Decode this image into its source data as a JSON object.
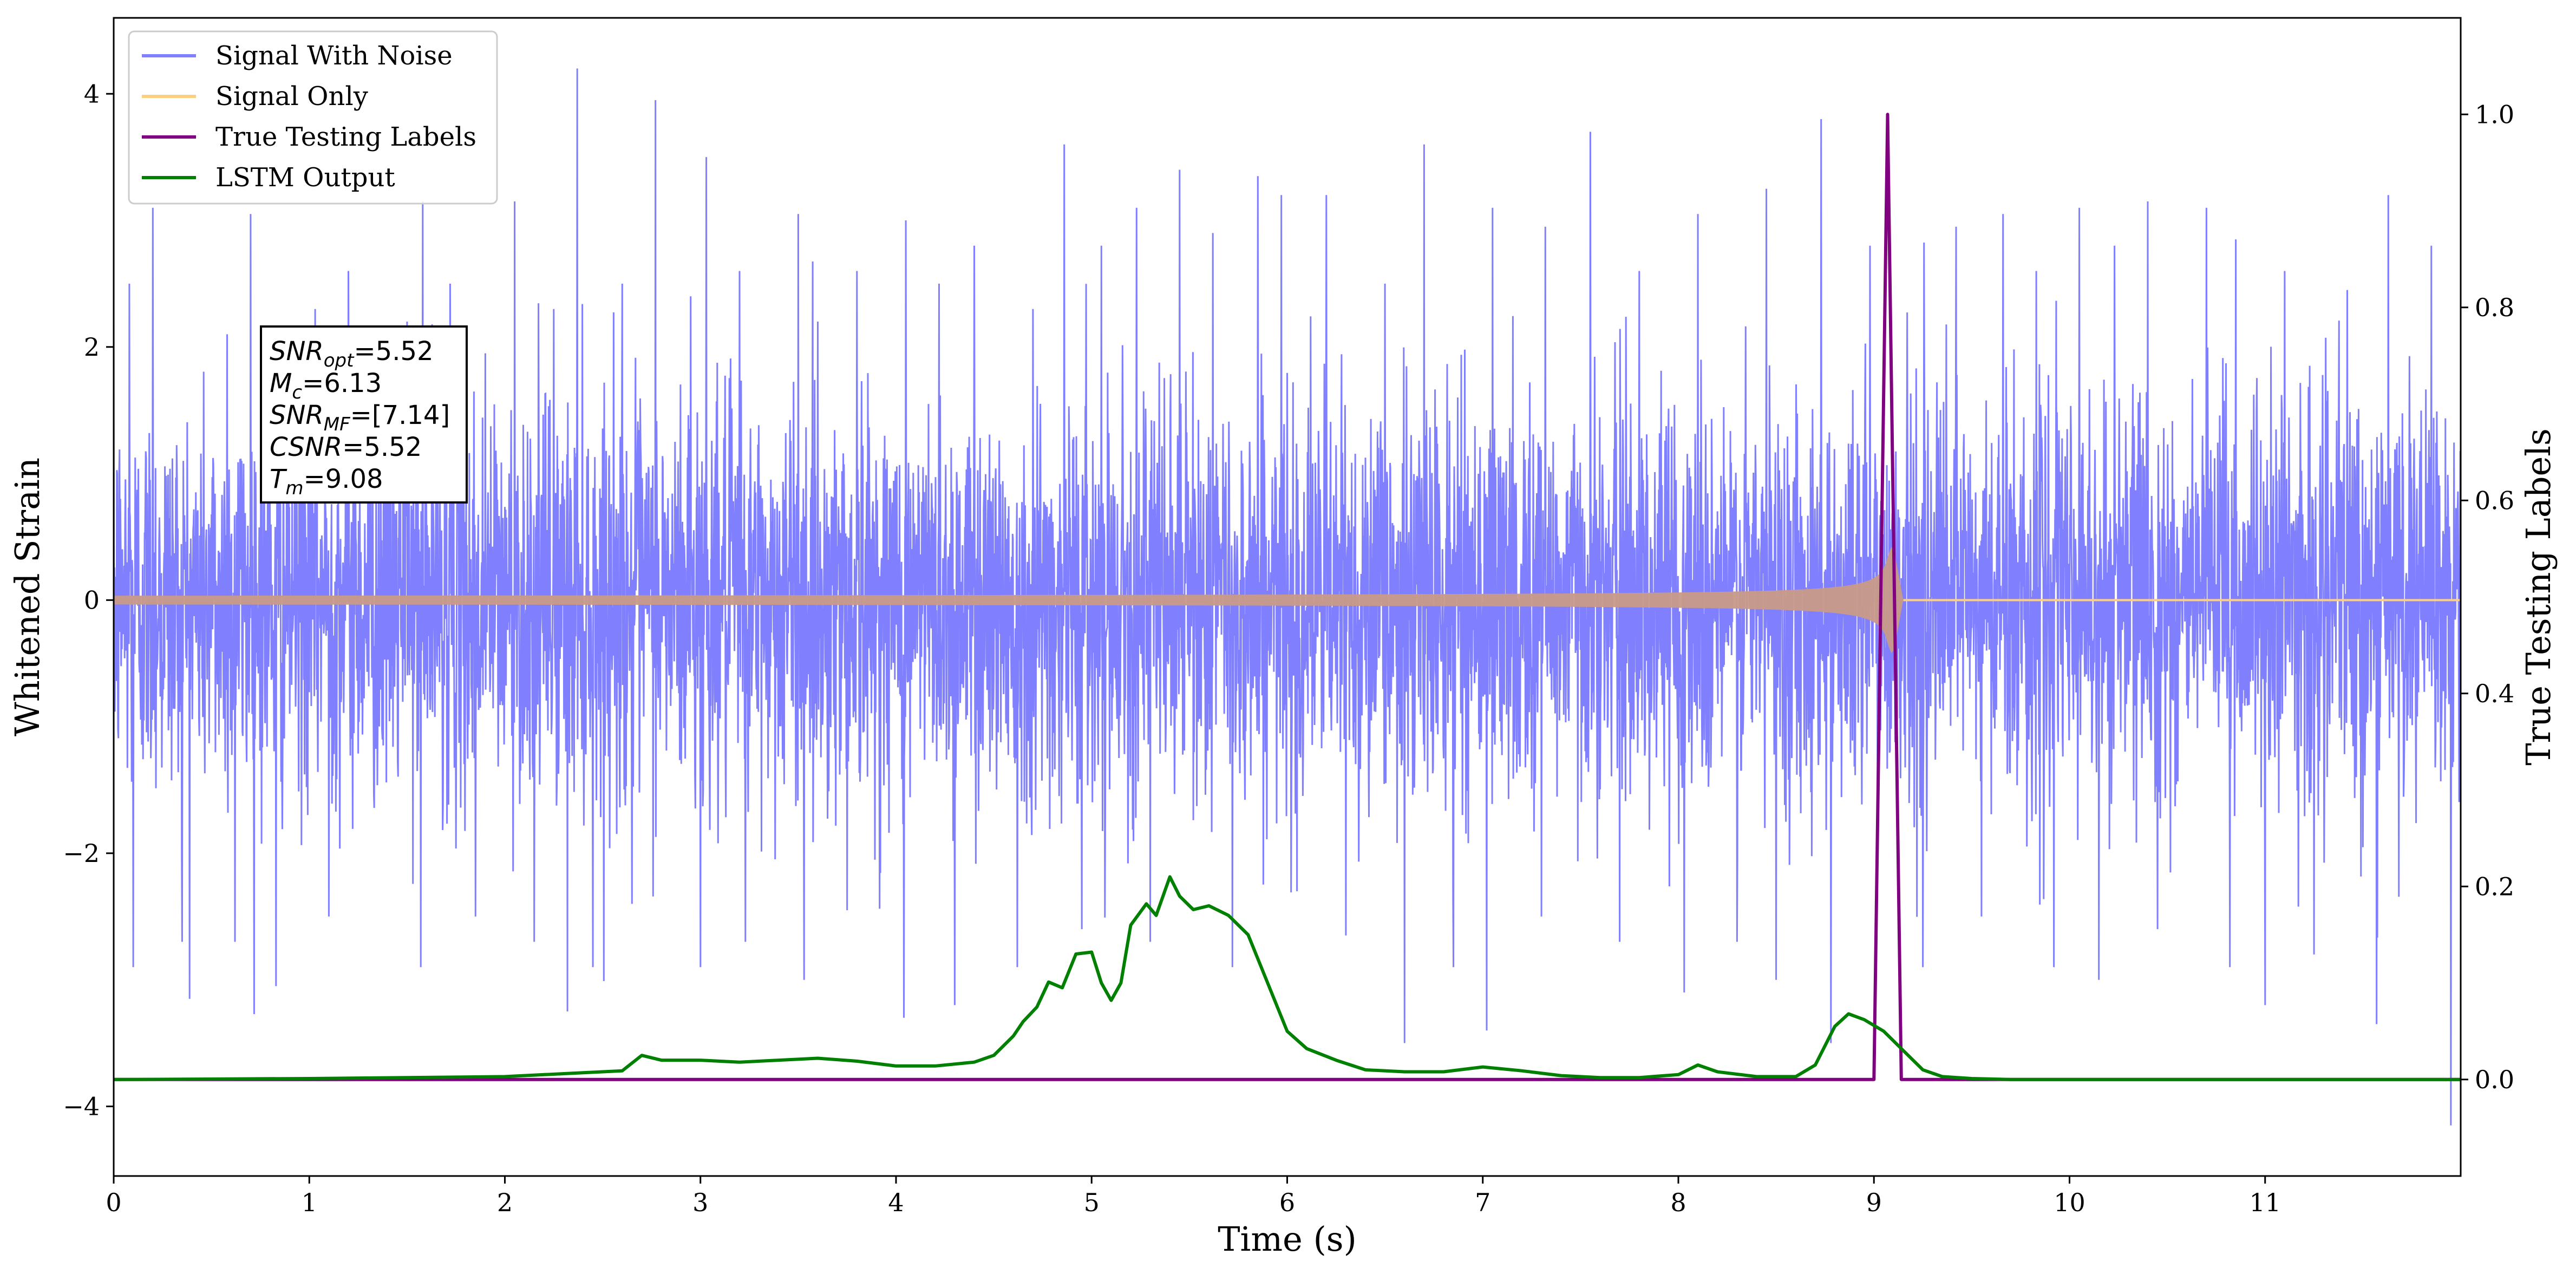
{
  "chart_data": {
    "type": "line",
    "xlabel": "Time (s)",
    "ylabel": "Whitened Strain",
    "y2label": "True Testing Labels",
    "xlim": [
      0,
      12.0
    ],
    "ylim": [
      -4.55,
      4.6
    ],
    "y2lim": [
      -0.1,
      1.1
    ],
    "xticks": [
      0,
      1,
      2,
      3,
      4,
      5,
      6,
      7,
      8,
      9,
      10,
      11
    ],
    "yticks": [
      -4,
      -2,
      0,
      2,
      4
    ],
    "yticklabels": [
      "−4",
      "−2",
      "0",
      "2",
      "4"
    ],
    "y2ticks": [
      0.0,
      0.2,
      0.4,
      0.6,
      0.8,
      1.0
    ],
    "y2ticklabels": [
      "0.0",
      "0.2",
      "0.4",
      "0.6",
      "0.8",
      "1.0"
    ],
    "grid": false,
    "legend_position": "top-left",
    "series": [
      {
        "name": "Signal With Noise",
        "axis": "left",
        "color": "#8080ff",
        "noise_std": 0.78,
        "spikes": [
          [
            0.08,
            2.5
          ],
          [
            0.2,
            3.1
          ],
          [
            0.35,
            2.6
          ],
          [
            0.58,
            2.1
          ],
          [
            0.7,
            3.05
          ],
          [
            0.84,
            1.85
          ],
          [
            1.03,
            2.3
          ],
          [
            1.2,
            2.6
          ],
          [
            1.38,
            2.0
          ],
          [
            1.5,
            2.2
          ],
          [
            1.58,
            3.15
          ],
          [
            1.72,
            2.5
          ],
          [
            1.9,
            1.95
          ],
          [
            2.05,
            3.15
          ],
          [
            2.25,
            2.3
          ],
          [
            2.37,
            4.2
          ],
          [
            2.6,
            2.5
          ],
          [
            2.77,
            3.95
          ],
          [
            2.95,
            2.4
          ],
          [
            3.03,
            3.5
          ],
          [
            3.2,
            2.6
          ],
          [
            3.5,
            3.05
          ],
          [
            3.6,
            2.2
          ],
          [
            3.8,
            2.6
          ],
          [
            4.05,
            3.0
          ],
          [
            4.22,
            2.5
          ],
          [
            4.4,
            2.8
          ],
          [
            4.7,
            2.3
          ],
          [
            4.86,
            3.6
          ],
          [
            5.05,
            2.8
          ],
          [
            5.23,
            3.1
          ],
          [
            5.45,
            3.4
          ],
          [
            5.62,
            2.9
          ],
          [
            5.85,
            3.35
          ],
          [
            5.97,
            3.2
          ],
          [
            6.2,
            3.2
          ],
          [
            6.5,
            2.5
          ],
          [
            6.7,
            3.6
          ],
          [
            6.85,
            2.8
          ],
          [
            7.05,
            3.1
          ],
          [
            7.32,
            2.95
          ],
          [
            7.55,
            3.7
          ],
          [
            7.8,
            2.6
          ],
          [
            8.1,
            3.05
          ],
          [
            8.3,
            2.5
          ],
          [
            8.45,
            3.25
          ],
          [
            8.73,
            3.8
          ],
          [
            8.98,
            2.8
          ],
          [
            9.42,
            2.95
          ],
          [
            9.66,
            3.05
          ],
          [
            9.83,
            2.6
          ],
          [
            10.05,
            3.1
          ],
          [
            10.23,
            2.8
          ],
          [
            10.4,
            3.15
          ],
          [
            10.7,
            3.1
          ],
          [
            10.85,
            2.85
          ],
          [
            11.1,
            2.6
          ],
          [
            11.42,
            2.45
          ],
          [
            11.63,
            3.2
          ],
          [
            11.85,
            2.8
          ],
          [
            0.1,
            -2.9
          ],
          [
            0.35,
            -2.7
          ],
          [
            0.62,
            -2.7
          ],
          [
            0.83,
            -3.05
          ],
          [
            1.1,
            -2.5
          ],
          [
            1.57,
            -2.9
          ],
          [
            1.85,
            -2.5
          ],
          [
            2.15,
            -2.7
          ],
          [
            2.32,
            -3.25
          ],
          [
            2.45,
            -2.9
          ],
          [
            2.65,
            -2.4
          ],
          [
            3.0,
            -2.9
          ],
          [
            3.23,
            -2.7
          ],
          [
            3.53,
            -3.0
          ],
          [
            3.75,
            -2.45
          ],
          [
            4.04,
            -3.3
          ],
          [
            4.3,
            -3.2
          ],
          [
            4.62,
            -2.9
          ],
          [
            4.95,
            -2.6
          ],
          [
            5.3,
            -2.7
          ],
          [
            5.72,
            -2.9
          ],
          [
            6.05,
            -2.3
          ],
          [
            6.3,
            -2.65
          ],
          [
            6.6,
            -3.5
          ],
          [
            6.85,
            -2.9
          ],
          [
            7.02,
            -3.4
          ],
          [
            7.3,
            -2.5
          ],
          [
            7.7,
            -2.7
          ],
          [
            8.03,
            -3.1
          ],
          [
            8.3,
            -2.7
          ],
          [
            8.5,
            -3.0
          ],
          [
            8.78,
            -3.5
          ],
          [
            9.25,
            -2.9
          ],
          [
            9.55,
            -2.5
          ],
          [
            9.92,
            -2.9
          ],
          [
            10.15,
            -3.0
          ],
          [
            10.45,
            -2.6
          ],
          [
            10.82,
            -2.9
          ],
          [
            11.0,
            -3.2
          ],
          [
            11.25,
            -2.8
          ],
          [
            11.57,
            -3.35
          ],
          [
            11.95,
            -4.15
          ]
        ]
      },
      {
        "name": "Signal Only",
        "axis": "left",
        "color": "#ffcf80",
        "waveform": {
          "merger_time": 9.1,
          "start_amplitude": 0.025,
          "peak_amplitude": 0.42,
          "end_time": 9.15
        }
      },
      {
        "name": "True Testing Labels",
        "axis": "right",
        "color": "#800080",
        "x": [
          0,
          9.0,
          9.07,
          9.14,
          12.0
        ],
        "y": [
          0,
          0,
          1.0,
          0,
          0
        ]
      },
      {
        "name": "LSTM Output",
        "axis": "right",
        "color": "#008000",
        "x": [
          0,
          1.0,
          2.0,
          2.2,
          2.4,
          2.6,
          2.7,
          2.8,
          3.0,
          3.2,
          3.4,
          3.6,
          3.8,
          4.0,
          4.2,
          4.4,
          4.5,
          4.6,
          4.65,
          4.72,
          4.78,
          4.85,
          4.92,
          5.0,
          5.05,
          5.1,
          5.15,
          5.2,
          5.28,
          5.33,
          5.4,
          5.45,
          5.52,
          5.6,
          5.7,
          5.8,
          5.9,
          6.0,
          6.1,
          6.25,
          6.4,
          6.6,
          6.8,
          7.0,
          7.2,
          7.4,
          7.6,
          7.8,
          8.0,
          8.1,
          8.2,
          8.4,
          8.6,
          8.7,
          8.8,
          8.87,
          8.95,
          9.05,
          9.15,
          9.25,
          9.35,
          9.5,
          9.7,
          10.0,
          12.0
        ],
        "y": [
          0,
          0.001,
          0.003,
          0.005,
          0.007,
          0.009,
          0.025,
          0.02,
          0.02,
          0.018,
          0.02,
          0.022,
          0.019,
          0.014,
          0.014,
          0.018,
          0.025,
          0.045,
          0.06,
          0.075,
          0.101,
          0.095,
          0.13,
          0.132,
          0.1,
          0.082,
          0.1,
          0.16,
          0.182,
          0.17,
          0.21,
          0.19,
          0.176,
          0.18,
          0.17,
          0.15,
          0.1,
          0.05,
          0.032,
          0.02,
          0.01,
          0.008,
          0.008,
          0.013,
          0.009,
          0.004,
          0.002,
          0.002,
          0.005,
          0.015,
          0.008,
          0.003,
          0.003,
          0.015,
          0.055,
          0.068,
          0.062,
          0.05,
          0.03,
          0.01,
          0.003,
          0.001,
          0,
          0,
          0
        ]
      }
    ],
    "annotation": [
      {
        "base": "SNR",
        "sub": "opt",
        "rest": "=5.52"
      },
      {
        "base": "M",
        "sub": "c",
        "rest": "=6.13"
      },
      {
        "base": "SNR",
        "sub": "MF",
        "rest": "=[7.14]"
      },
      {
        "base": "CSNR",
        "sub": "",
        "rest": "=5.52"
      },
      {
        "base": "T",
        "sub": "m",
        "rest": "=9.08"
      }
    ]
  }
}
